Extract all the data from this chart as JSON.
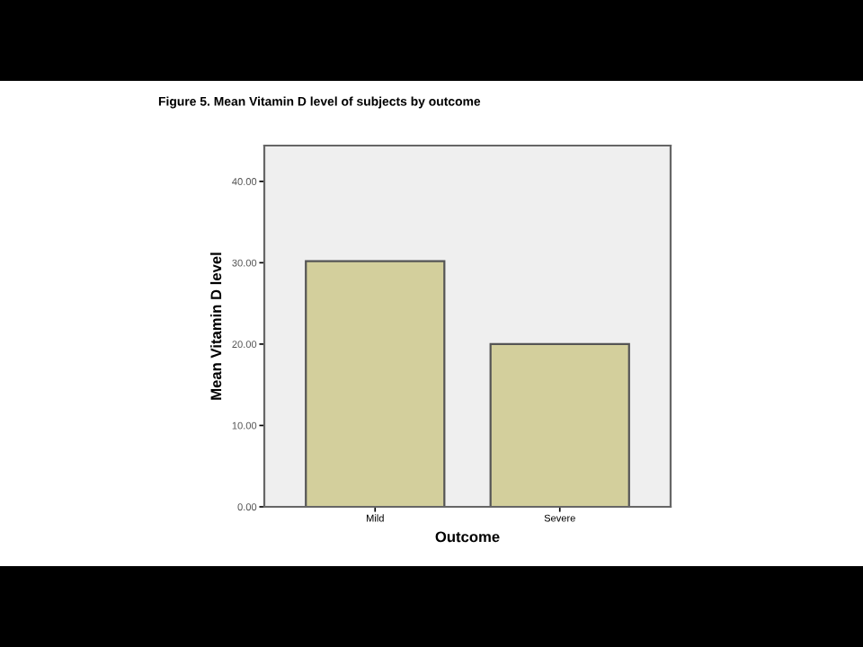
{
  "chart_data": {
    "type": "bar",
    "title": "Figure 5. Mean Vitamin D level of subjects by outcome",
    "xlabel": "Outcome",
    "ylabel": "Mean Vitamin D level",
    "categories": [
      "Mild",
      "Severe"
    ],
    "values": [
      30.2,
      20.0
    ],
    "color": "#d3cf9c",
    "ylim": [
      0,
      44.4
    ],
    "yticks": [
      {
        "value": 0,
        "label": "0.00"
      },
      {
        "value": 10,
        "label": "10.00"
      },
      {
        "value": 20,
        "label": "20.00"
      },
      {
        "value": 30,
        "label": "30.00"
      },
      {
        "value": 40,
        "label": "40.00"
      }
    ],
    "grid": false
  }
}
